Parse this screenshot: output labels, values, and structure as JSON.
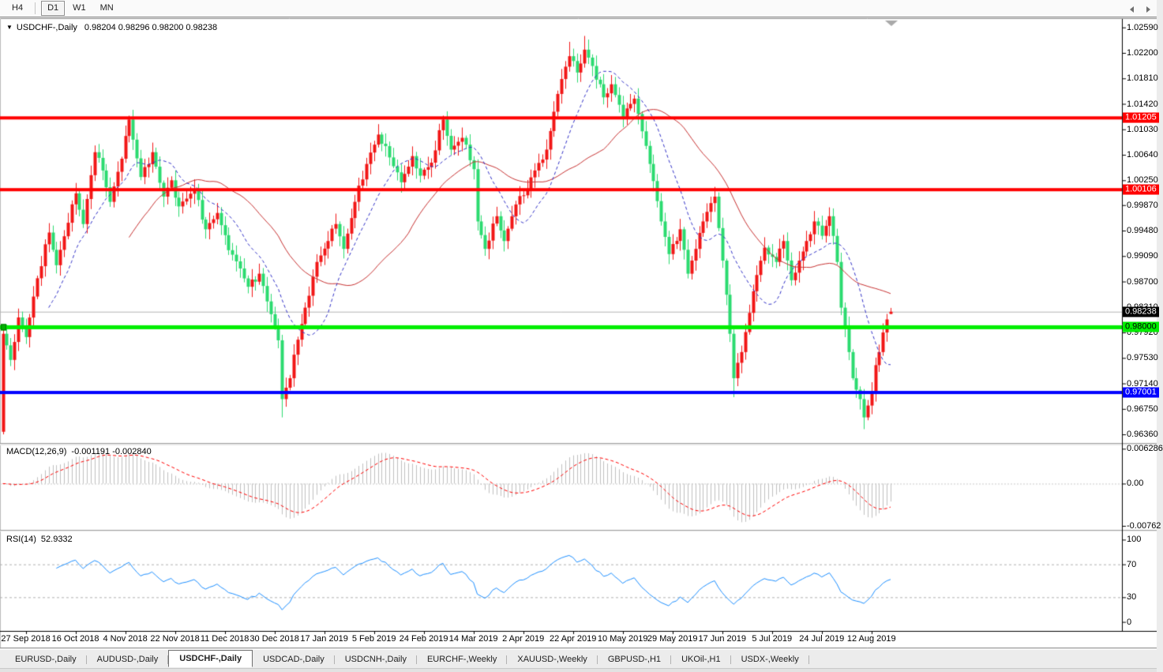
{
  "toolbar": {
    "group1": [
      {
        "label": "H4",
        "active": false
      }
    ],
    "group2": [
      {
        "label": "D1",
        "active": true
      },
      {
        "label": "W1",
        "active": false
      },
      {
        "label": "MN",
        "active": false
      }
    ]
  },
  "chart": {
    "title": {
      "marker": "▼",
      "symbol": "USDCHF-,Daily",
      "ohlc": "0.98204 0.98296 0.98200 0.98238"
    }
  },
  "chart_data": {
    "type": "candlestick",
    "symbol": "USDCHF",
    "timeframe": "Daily",
    "ohlc_display": {
      "open": "0.98204",
      "high": "0.98296",
      "low": "0.98200",
      "close": "0.98238"
    },
    "candle_colors": {
      "up": "#F21616",
      "down": "#2BDB70"
    },
    "price_axis": {
      "range": [
        0.9624,
        1.0272
      ],
      "ticks": [
        "1.02590",
        "1.02200",
        "1.01810",
        "1.01420",
        "1.01030",
        "1.00640",
        "1.00250",
        "0.99870",
        "0.99480",
        "0.99090",
        "0.98700",
        "0.98310",
        "0.97920",
        "0.97530",
        "0.97140",
        "0.96750",
        "0.96360"
      ]
    },
    "time_axis": {
      "labels": [
        "27 Sep 2018",
        "16 Oct 2018",
        "4 Nov 2018",
        "22 Nov 2018",
        "11 Dec 2018",
        "30 Dec 2018",
        "17 Jan 2019",
        "5 Feb 2019",
        "24 Feb 2019",
        "14 Mar 2019",
        "2 Apr 2019",
        "22 Apr 2019",
        "10 May 2019",
        "29 May 2019",
        "17 Jun 2019",
        "5 Jul 2019",
        "24 Jul 2019",
        "12 Aug 2019"
      ],
      "first_label_bar": 6,
      "bars_per_label": 13,
      "total_bars": 233
    },
    "levels": [
      {
        "name": "resistance-1",
        "value": 1.01205,
        "label": "1.01205",
        "color": "#FF0000",
        "text_color": "#FFFFFF",
        "thickness": 4
      },
      {
        "name": "resistance-2",
        "value": 1.00106,
        "label": "1.00106",
        "color": "#FF0000",
        "text_color": "#FFFFFF",
        "thickness": 4
      },
      {
        "name": "support-green",
        "value": 0.98,
        "label": "0.98000",
        "color": "#00EE00",
        "text_color": "#000000",
        "thickness": 5
      },
      {
        "name": "support-blue",
        "value": 0.97001,
        "label": "0.97001",
        "color": "#0000FF",
        "text_color": "#FFFFFF",
        "thickness": 4
      }
    ],
    "current_price": {
      "value": 0.98238,
      "label": "0.98238",
      "badge_color": "#000000",
      "text_color": "#FFFFFF",
      "line_color": "#B4B4B4"
    },
    "moving_averages": [
      {
        "name": "ma-fast",
        "period": 13,
        "color": "#3232C8",
        "style": "dashed"
      },
      {
        "name": "ma-slow",
        "period": 34,
        "color": "#C83232",
        "style": "solid"
      }
    ],
    "first_open": 0.964,
    "anchors": [
      [
        0,
        0.979
      ],
      [
        2,
        0.975
      ],
      [
        4,
        0.9815
      ],
      [
        6,
        0.9785
      ],
      [
        9,
        0.9875
      ],
      [
        12,
        0.9945
      ],
      [
        14,
        0.9895
      ],
      [
        17,
        0.996
      ],
      [
        19,
        1.0005
      ],
      [
        21,
        0.9958
      ],
      [
        24,
        1.0068
      ],
      [
        26,
        1.004
      ],
      [
        28,
        0.9992
      ],
      [
        31,
        1.0058
      ],
      [
        33,
        1.0118
      ],
      [
        36,
        1.003
      ],
      [
        39,
        1.0068
      ],
      [
        42,
        1.0
      ],
      [
        44,
        1.0025
      ],
      [
        46,
        0.9985
      ],
      [
        50,
        1.0012
      ],
      [
        53,
        0.995
      ],
      [
        56,
        0.9975
      ],
      [
        59,
        0.9918
      ],
      [
        62,
        0.989
      ],
      [
        64,
        0.9862
      ],
      [
        67,
        0.9882
      ],
      [
        70,
        0.982
      ],
      [
        72,
        0.978
      ],
      [
        73,
        0.969
      ],
      [
        75,
        0.9722
      ],
      [
        76,
        0.9758
      ],
      [
        79,
        0.983
      ],
      [
        82,
        0.99
      ],
      [
        85,
        0.9932
      ],
      [
        87,
        0.9958
      ],
      [
        89,
        0.992
      ],
      [
        92,
        0.9992
      ],
      [
        95,
        1.005
      ],
      [
        98,
        1.0095
      ],
      [
        101,
        1.006
      ],
      [
        104,
        1.0022
      ],
      [
        107,
        1.0062
      ],
      [
        109,
        1.0032
      ],
      [
        112,
        1.0052
      ],
      [
        115,
        1.0118
      ],
      [
        117,
        1.0072
      ],
      [
        120,
        1.009
      ],
      [
        123,
        1.0042
      ],
      [
        124,
        0.9962
      ],
      [
        126,
        0.992
      ],
      [
        129,
        0.997
      ],
      [
        131,
        0.9932
      ],
      [
        134,
        0.9988
      ],
      [
        136,
        1.0002
      ],
      [
        139,
        1.004
      ],
      [
        142,
        1.0072
      ],
      [
        144,
        1.013
      ],
      [
        146,
        1.018
      ],
      [
        148,
        1.0215
      ],
      [
        150,
        1.019
      ],
      [
        152,
        1.0225
      ],
      [
        154,
        1.02
      ],
      [
        157,
        1.0152
      ],
      [
        159,
        1.0172
      ],
      [
        162,
        1.0122
      ],
      [
        165,
        1.015
      ],
      [
        167,
        1.01
      ],
      [
        169,
        1.005
      ],
      [
        172,
        0.9962
      ],
      [
        174,
        0.9912
      ],
      [
        177,
        0.995
      ],
      [
        179,
        0.9882
      ],
      [
        181,
        0.992
      ],
      [
        183,
        0.9962
      ],
      [
        186,
        1.0
      ],
      [
        188,
        0.9902
      ],
      [
        190,
        0.979
      ],
      [
        191,
        0.9722
      ],
      [
        193,
        0.9762
      ],
      [
        195,
        0.9822
      ],
      [
        197,
        0.988
      ],
      [
        199,
        0.9922
      ],
      [
        202,
        0.99
      ],
      [
        204,
        0.9932
      ],
      [
        206,
        0.9872
      ],
      [
        208,
        0.9902
      ],
      [
        210,
        0.9932
      ],
      [
        212,
        0.9962
      ],
      [
        214,
        0.994
      ],
      [
        216,
        0.997
      ],
      [
        218,
        0.99
      ],
      [
        219,
        0.983
      ],
      [
        221,
        0.9762
      ],
      [
        222,
        0.9722
      ],
      [
        224,
        0.969
      ],
      [
        225,
        0.9662
      ],
      [
        227,
        0.9702
      ],
      [
        228,
        0.9742
      ],
      [
        229,
        0.9762
      ],
      [
        230,
        0.9792
      ],
      [
        231,
        0.9812
      ],
      [
        232,
        0.98238
      ]
    ],
    "bar_overrides": {
      "0": {
        "l": 0.9636,
        "h": 0.9802
      },
      "33": {
        "h": 1.0124
      },
      "73": {
        "l": 0.9662
      },
      "115": {
        "h": 1.0124
      },
      "148": {
        "h": 1.0237
      },
      "152": {
        "h": 1.0246
      },
      "191": {
        "l": 0.9693
      },
      "225": {
        "l": 0.9644
      },
      "232": {
        "o": 0.98204,
        "h": 0.98296,
        "l": 0.982,
        "c": 0.98238
      }
    },
    "indicators": {
      "macd": {
        "label": "MACD(12,26,9)",
        "values_text": "-0.001191 -0.002840",
        "params": [
          12,
          26,
          9
        ],
        "range": [
          -0.0082,
          0.0069
        ],
        "axis_ticks": [
          {
            "label": "0.006286",
            "value": 0.006286
          },
          {
            "label": "0.00",
            "value": 0
          },
          {
            "label": "-0.00762",
            "value": -0.00762
          }
        ],
        "histogram_color": "#C0C0C0",
        "signal_color": "#FF0000"
      },
      "rsi": {
        "label": "RSI(14)",
        "value_text": "52.9332",
        "period": 14,
        "range": [
          -10,
          110
        ],
        "levels": [
          70,
          30
        ],
        "axis_ticks": [
          {
            "label": "100",
            "value": 100
          },
          {
            "label": "70",
            "value": 70
          },
          {
            "label": "30",
            "value": 30
          },
          {
            "label": "0",
            "value": 0
          }
        ],
        "line_color": "#1E90FF",
        "level_color": "#B0B0B0"
      }
    }
  },
  "tabs": [
    {
      "label": "EURUSD-,Daily",
      "active": false
    },
    {
      "label": "AUDUSD-,Daily",
      "active": false
    },
    {
      "label": "USDCHF-,Daily",
      "active": true
    },
    {
      "label": "USDCAD-,Daily",
      "active": false
    },
    {
      "label": "USDCNH-,Daily",
      "active": false
    },
    {
      "label": "EURCHF-,Weekly",
      "active": false
    },
    {
      "label": "XAUUSD-,Weekly",
      "active": false
    },
    {
      "label": "GBPUSD-,H1",
      "active": false
    },
    {
      "label": "UKOil-,H1",
      "active": false
    },
    {
      "label": "USDX-,Weekly",
      "active": false
    }
  ]
}
